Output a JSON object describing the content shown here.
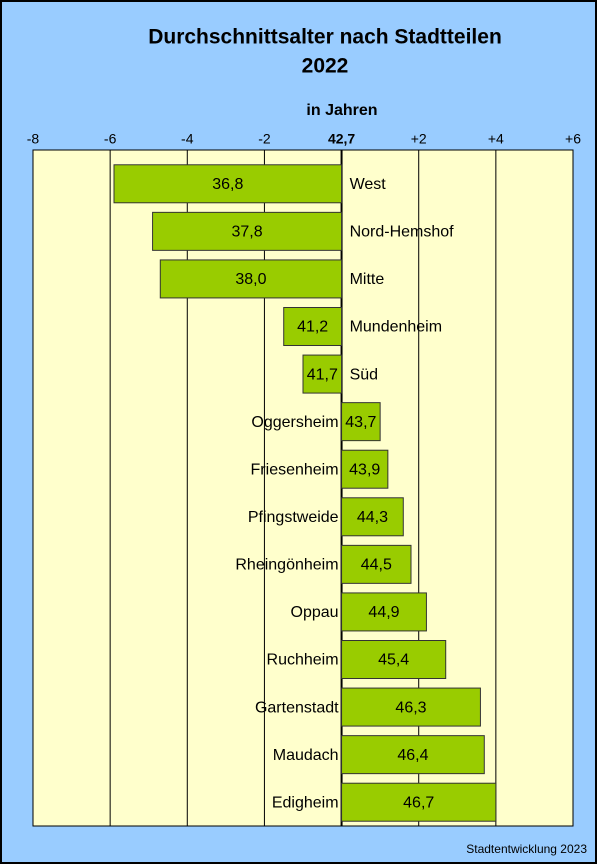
{
  "chart_data": {
    "type": "bar",
    "orientation": "horizontal",
    "title": [
      "Durchschnittsalter nach Stadtteilen",
      "2022"
    ],
    "x_label": "in Jahren",
    "source": "Stadtentwicklung 2023",
    "categories": [
      "West",
      "Nord-Hemshof",
      "Mitte",
      "Mundenheim",
      "Süd",
      "Oggersheim",
      "Friesenheim",
      "Pfingstweide",
      "Rheingönheim",
      "Oppau",
      "Ruchheim",
      "Gartenstadt",
      "Maudach",
      "Edigheim"
    ],
    "values": [
      36.8,
      37.8,
      38.0,
      41.2,
      41.7,
      43.7,
      43.9,
      44.3,
      44.5,
      44.9,
      45.4,
      46.3,
      46.4,
      46.7
    ],
    "value_labels": [
      "36,8",
      "37,8",
      "38,0",
      "41,2",
      "41,7",
      "43,7",
      "43,9",
      "44,3",
      "44,5",
      "44,9",
      "45,4",
      "46,3",
      "46,4",
      "46,7"
    ],
    "baseline": 42.7,
    "color": "#99cc00",
    "xlim": [
      34.7,
      48.7
    ],
    "xticks": [
      {
        "value": 34.7,
        "label": "-8"
      },
      {
        "value": 36.7,
        "label": "-6"
      },
      {
        "value": 38.7,
        "label": "-4"
      },
      {
        "value": 40.7,
        "label": "-2"
      },
      {
        "value": 42.7,
        "label": "42,7"
      },
      {
        "value": 44.7,
        "label": "+2"
      },
      {
        "value": 46.7,
        "label": "+4"
      },
      {
        "value": 48.7,
        "label": "+6"
      }
    ],
    "grid": true
  }
}
